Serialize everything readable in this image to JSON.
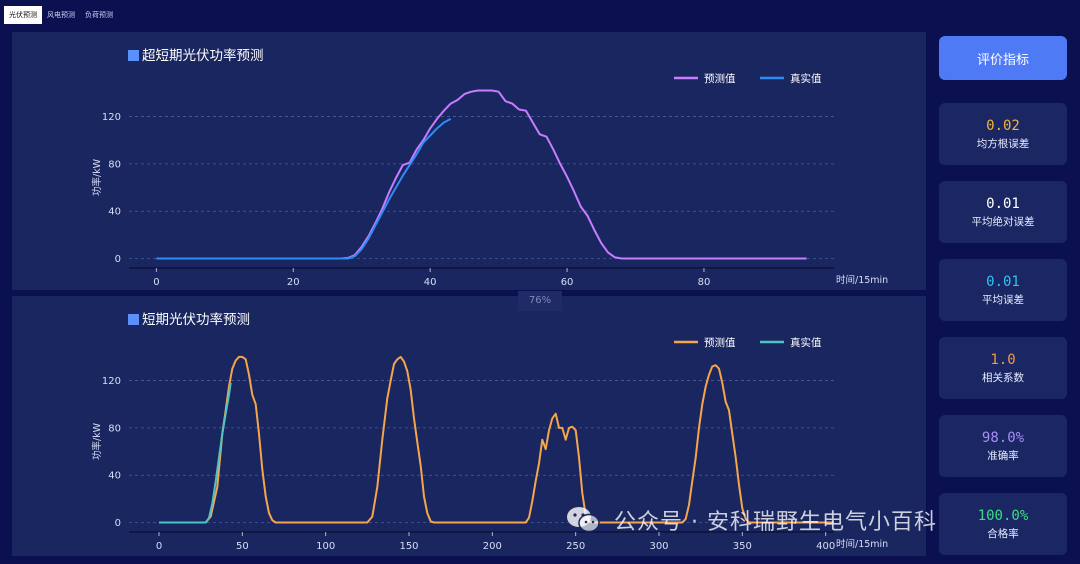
{
  "tabs": [
    {
      "label": "光伏预测",
      "active": true
    },
    {
      "label": "风电预测",
      "active": false
    },
    {
      "label": "负荷预测",
      "active": false
    }
  ],
  "progress_label": "76%",
  "sidebar": {
    "button_label": "评价指标",
    "metrics": [
      {
        "value": "0.02",
        "label": "均方根误差",
        "color": "#f5b33a"
      },
      {
        "value": "0.01",
        "label": "平均绝对误差",
        "color": "#ffffff"
      },
      {
        "value": "0.01",
        "label": "平均误差",
        "color": "#2fc4f0"
      },
      {
        "value": "1.0",
        "label": "相关系数",
        "color": "#f29a45"
      },
      {
        "value": "98.0%",
        "label": "准确率",
        "color": "#a98cf5"
      },
      {
        "value": "100.0%",
        "label": "合格率",
        "color": "#3ddc84"
      }
    ]
  },
  "watermark": "公众号 · 安科瑞野生电气小百科",
  "chart_data": [
    {
      "type": "line",
      "title": "超短期光伏功率预测",
      "xlabel": "时间/15min",
      "ylabel": "功率/kW",
      "xlim": [
        -4,
        99
      ],
      "ylim": [
        -8,
        145
      ],
      "xticks": [
        0,
        20,
        40,
        60,
        80
      ],
      "yticks": [
        0,
        40,
        80,
        120
      ],
      "grid": "horizontal-dashed",
      "legend": "top-right",
      "series": [
        {
          "name": "预测值",
          "color": "#c77dff",
          "x": [
            0,
            27,
            28,
            29,
            30,
            31,
            32,
            33,
            34,
            35,
            36,
            37,
            38,
            39,
            40,
            41,
            42,
            43,
            44,
            45,
            46,
            47,
            48,
            49,
            50,
            51,
            52,
            53,
            54,
            55,
            56,
            57,
            58,
            59,
            60,
            61,
            62,
            63,
            64,
            65,
            66,
            67,
            68,
            69,
            70,
            95
          ],
          "y": [
            0,
            0,
            0.5,
            3,
            10,
            19,
            30,
            42,
            56,
            68,
            79,
            81,
            92,
            100,
            110,
            118,
            125,
            131,
            134,
            139,
            141,
            142,
            142,
            142,
            141,
            133,
            131,
            126,
            125,
            115,
            105,
            103,
            92,
            80,
            69,
            57,
            44,
            36,
            24,
            13,
            5,
            1,
            0,
            0,
            0,
            0
          ]
        },
        {
          "name": "真实值",
          "color": "#2f8cf5",
          "x": [
            0,
            28,
            29,
            30,
            31,
            32,
            33,
            34,
            35,
            36,
            37,
            38,
            39,
            40,
            41,
            42,
            43
          ],
          "y": [
            0,
            0,
            2,
            8,
            17,
            28,
            39,
            50,
            60,
            70,
            79,
            88,
            98,
            104,
            110,
            115,
            118
          ]
        }
      ]
    },
    {
      "type": "line",
      "title": "短期光伏功率预测",
      "xlabel": "时间/15min",
      "ylabel": "功率/kW",
      "xlim": [
        -18,
        405
      ],
      "ylim": [
        -8,
        145
      ],
      "xticks": [
        0,
        50,
        100,
        150,
        200,
        250,
        300,
        350,
        400
      ],
      "yticks": [
        0,
        40,
        80,
        120
      ],
      "grid": "horizontal-dashed",
      "legend": "top-right",
      "series": [
        {
          "name": "预测值",
          "color": "#f5a54a",
          "x": [
            0,
            28,
            31,
            35,
            38,
            40,
            42,
            44,
            46,
            48,
            50,
            52,
            54,
            56,
            58,
            60,
            62,
            64,
            66,
            68,
            70,
            125,
            128,
            131,
            134,
            137,
            139,
            141,
            143,
            145,
            147,
            149,
            151,
            153,
            155,
            157,
            159,
            161,
            163,
            165,
            167,
            220,
            222,
            224,
            226,
            228,
            230,
            232,
            234,
            236,
            238,
            240,
            242,
            244,
            246,
            248,
            250,
            252,
            254,
            256,
            258,
            260,
            262,
            314,
            316,
            318,
            320,
            322,
            324,
            326,
            328,
            330,
            332,
            334,
            336,
            338,
            340,
            342,
            344,
            346,
            348,
            350,
            352,
            354,
            405
          ],
          "y": [
            0,
            0,
            5,
            30,
            75,
            95,
            115,
            130,
            137,
            140,
            140,
            138,
            125,
            108,
            100,
            75,
            45,
            22,
            8,
            2,
            0,
            0,
            5,
            30,
            70,
            105,
            120,
            134,
            138,
            140,
            136,
            128,
            112,
            88,
            68,
            48,
            22,
            8,
            1,
            0,
            0,
            0,
            4,
            18,
            35,
            50,
            70,
            62,
            78,
            88,
            92,
            80,
            80,
            70,
            80,
            81,
            78,
            55,
            25,
            6,
            1,
            0,
            0,
            0,
            3,
            15,
            35,
            55,
            80,
            100,
            115,
            125,
            132,
            133,
            130,
            118,
            102,
            95,
            75,
            55,
            32,
            12,
            3,
            0,
            0
          ]
        },
        {
          "name": "真实值",
          "color": "#4fc3c3",
          "x": [
            0,
            28,
            30,
            32,
            34,
            36,
            38,
            40,
            42,
            43
          ],
          "y": [
            0,
            0,
            4,
            16,
            35,
            55,
            75,
            92,
            108,
            118
          ]
        }
      ]
    }
  ]
}
